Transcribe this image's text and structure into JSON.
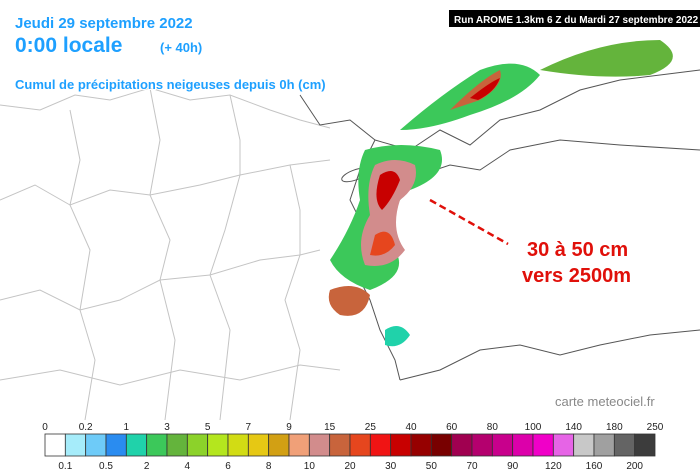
{
  "header": {
    "date": "Jeudi 29 septembre 2022",
    "time": "0:00 locale",
    "lead": "(+ 40h)",
    "product": "Cumul de précipitations neigeuses depuis 0h (cm)",
    "run": "Run AROME 1.3km 6 Z du Mardi 27 septembre 2022"
  },
  "annotation": {
    "line1": "30 à 50 cm",
    "line2": "vers 2500m"
  },
  "credit": "carte meteociel.fr",
  "legend": {
    "ticks": [
      0,
      0.1,
      0.2,
      0.5,
      1,
      2,
      3,
      4,
      5,
      6,
      7,
      8,
      9,
      10,
      15,
      20,
      25,
      30,
      40,
      50,
      60,
      70,
      80,
      90,
      100,
      120,
      140,
      160,
      180,
      200,
      250
    ],
    "colors": [
      "#ffffff",
      "#a6ecfa",
      "#6ecbf8",
      "#2a8cf0",
      "#20d2aa",
      "#3cc85a",
      "#64b43c",
      "#8cd22a",
      "#b4e61e",
      "#d2dc14",
      "#e6c814",
      "#d2a014",
      "#f0a078",
      "#d28c8c",
      "#c8643c",
      "#e6461e",
      "#f01414",
      "#c80000",
      "#960000",
      "#780000",
      "#a00050",
      "#b4006e",
      "#c8008c",
      "#dc00aa",
      "#f000c8",
      "#e664e6",
      "#c8c8c8",
      "#a0a0a0",
      "#646464",
      "#3c3c3c"
    ]
  }
}
